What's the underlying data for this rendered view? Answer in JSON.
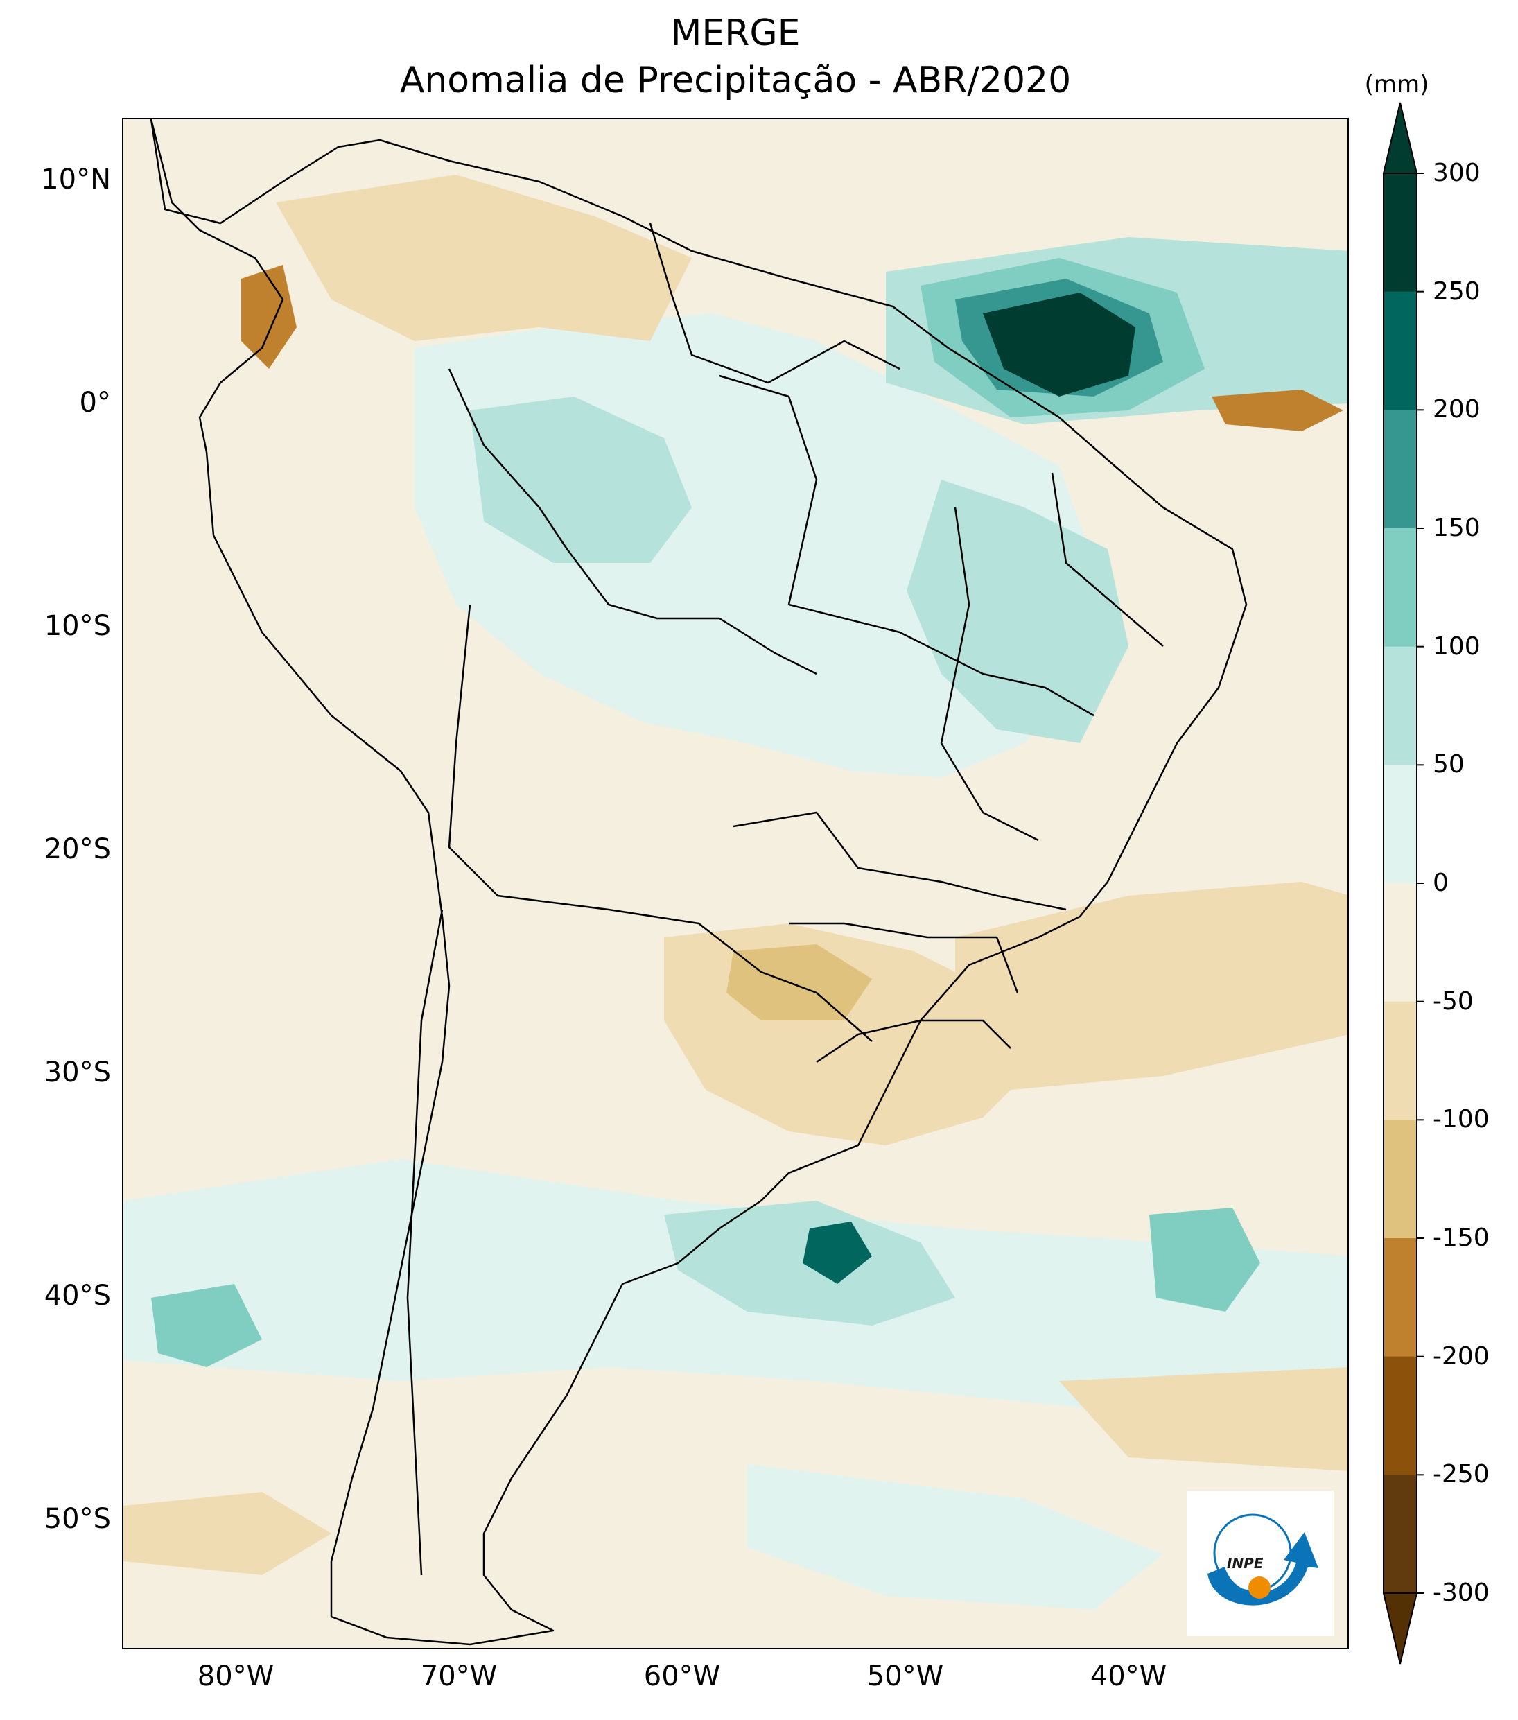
{
  "title": {
    "line1": "MERGE",
    "line2": "Anomalia de Precipitação - ABR/2020"
  },
  "latitude_labels": [
    "10°N",
    "0°",
    "10°S",
    "20°S",
    "30°S",
    "40°S",
    "50°S"
  ],
  "longitude_labels": [
    "80°W",
    "70°W",
    "60°W",
    "50°W",
    "40°W"
  ],
  "colorbar": {
    "unit": "(mm)",
    "labels": [
      "300",
      "250",
      "200",
      "150",
      "100",
      "50",
      "0",
      "-50",
      "-100",
      "-150",
      "-200",
      "-250",
      "-300"
    ],
    "colors": [
      "#003c30",
      "#01665e",
      "#35978f",
      "#80cdc1",
      "#b5e2da",
      "#e1f3ef",
      "#f5efe0",
      "#efdcb2",
      "#dfc27d",
      "#bf812d",
      "#8c510a",
      "#613b0d"
    ],
    "min_arrow_color": "#543005",
    "max_arrow_color": "#003c30"
  },
  "map": {
    "extent": {
      "lon_min": -85,
      "lon_max": -30,
      "lat_min": -56,
      "lat_max": 13
    },
    "ocean_color": "#f5efe0",
    "border_color": "#000000"
  },
  "logo": {
    "text": "INPE",
    "ring_color": "#0b74b8",
    "dot_color": "#f08c00"
  }
}
